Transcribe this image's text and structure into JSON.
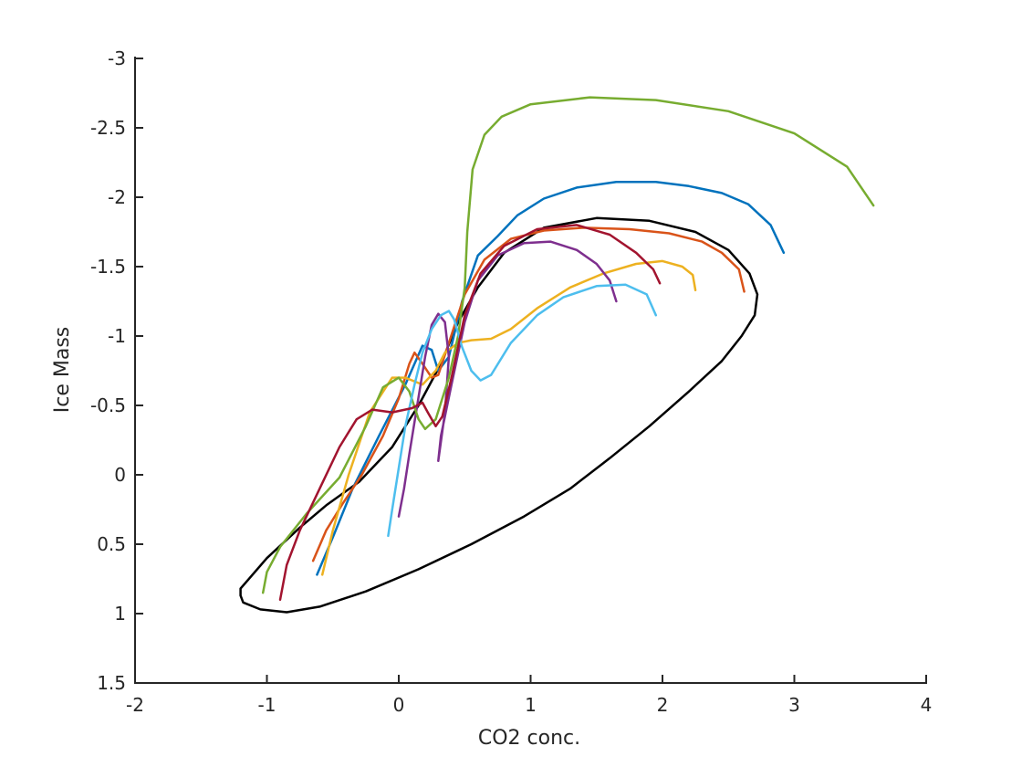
{
  "chart_data": {
    "type": "line",
    "title": "",
    "xlabel": "CO2 conc.",
    "ylabel": "Ice Mass",
    "xlim": [
      -2,
      4
    ],
    "ylim": [
      -3,
      1.5
    ],
    "y_reversed": true,
    "grid": false,
    "box": "axes-left-bottom",
    "xticks": [
      -2,
      -1,
      0,
      1,
      2,
      3,
      4
    ],
    "xtick_labels": [
      "-2",
      "-1",
      "0",
      "1",
      "2",
      "3",
      "4"
    ],
    "yticks": [
      -3,
      -2.5,
      -2,
      -1.5,
      -1,
      -0.5,
      0,
      0.5,
      1,
      1.5
    ],
    "ytick_labels": [
      "-3",
      "-2.5",
      "-2",
      "-1.5",
      "-1",
      "-0.5",
      "0",
      "0.5",
      "1",
      "1.5"
    ],
    "series": [
      {
        "color": "#000000",
        "closed": true,
        "points": [
          [
            -1.2,
            0.82
          ],
          [
            -1.0,
            0.6
          ],
          [
            -0.75,
            0.38
          ],
          [
            -0.55,
            0.22
          ],
          [
            -0.3,
            0.05
          ],
          [
            -0.05,
            -0.2
          ],
          [
            0.15,
            -0.5
          ],
          [
            0.32,
            -0.8
          ],
          [
            0.45,
            -1.1
          ],
          [
            0.6,
            -1.35
          ],
          [
            0.8,
            -1.6
          ],
          [
            1.1,
            -1.78
          ],
          [
            1.5,
            -1.85
          ],
          [
            1.9,
            -1.83
          ],
          [
            2.25,
            -1.75
          ],
          [
            2.5,
            -1.62
          ],
          [
            2.66,
            -1.45
          ],
          [
            2.72,
            -1.3
          ],
          [
            2.7,
            -1.15
          ],
          [
            2.6,
            -1.0
          ],
          [
            2.45,
            -0.82
          ],
          [
            2.2,
            -0.6
          ],
          [
            1.9,
            -0.35
          ],
          [
            1.6,
            -0.12
          ],
          [
            1.3,
            0.1
          ],
          [
            0.95,
            0.3
          ],
          [
            0.55,
            0.5
          ],
          [
            0.15,
            0.68
          ],
          [
            -0.25,
            0.84
          ],
          [
            -0.6,
            0.95
          ],
          [
            -0.85,
            0.99
          ],
          [
            -1.05,
            0.97
          ],
          [
            -1.18,
            0.92
          ],
          [
            -1.2,
            0.87
          ]
        ]
      },
      {
        "color": "#0072bd",
        "points": [
          [
            -0.62,
            0.72
          ],
          [
            -0.5,
            0.45
          ],
          [
            -0.35,
            0.1
          ],
          [
            -0.15,
            -0.28
          ],
          [
            0.05,
            -0.65
          ],
          [
            0.18,
            -0.93
          ],
          [
            0.25,
            -0.9
          ],
          [
            0.3,
            -0.75
          ],
          [
            0.38,
            -0.85
          ],
          [
            0.48,
            -1.25
          ],
          [
            0.6,
            -1.58
          ],
          [
            0.75,
            -1.72
          ],
          [
            0.9,
            -1.87
          ],
          [
            1.1,
            -1.99
          ],
          [
            1.35,
            -2.07
          ],
          [
            1.65,
            -2.11
          ],
          [
            1.95,
            -2.11
          ],
          [
            2.2,
            -2.08
          ],
          [
            2.45,
            -2.03
          ],
          [
            2.65,
            -1.95
          ],
          [
            2.82,
            -1.8
          ],
          [
            2.92,
            -1.6
          ]
        ]
      },
      {
        "color": "#d95319",
        "points": [
          [
            -0.65,
            0.62
          ],
          [
            -0.55,
            0.4
          ],
          [
            -0.42,
            0.2
          ],
          [
            -0.28,
            0.0
          ],
          [
            -0.12,
            -0.28
          ],
          [
            0.0,
            -0.55
          ],
          [
            0.08,
            -0.8
          ],
          [
            0.12,
            -0.88
          ],
          [
            0.18,
            -0.8
          ],
          [
            0.25,
            -0.7
          ],
          [
            0.3,
            -0.72
          ],
          [
            0.38,
            -0.95
          ],
          [
            0.5,
            -1.3
          ],
          [
            0.65,
            -1.55
          ],
          [
            0.85,
            -1.7
          ],
          [
            1.1,
            -1.76
          ],
          [
            1.4,
            -1.78
          ],
          [
            1.75,
            -1.77
          ],
          [
            2.05,
            -1.74
          ],
          [
            2.3,
            -1.68
          ],
          [
            2.45,
            -1.6
          ],
          [
            2.58,
            -1.48
          ],
          [
            2.62,
            -1.32
          ]
        ]
      },
      {
        "color": "#edb120",
        "points": [
          [
            -0.58,
            0.72
          ],
          [
            -0.5,
            0.4
          ],
          [
            -0.38,
            0.0
          ],
          [
            -0.22,
            -0.45
          ],
          [
            -0.05,
            -0.7
          ],
          [
            0.05,
            -0.7
          ],
          [
            0.18,
            -0.65
          ],
          [
            0.28,
            -0.75
          ],
          [
            0.35,
            -0.88
          ],
          [
            0.45,
            -0.95
          ],
          [
            0.55,
            -0.97
          ],
          [
            0.7,
            -0.98
          ],
          [
            0.85,
            -1.05
          ],
          [
            1.05,
            -1.2
          ],
          [
            1.3,
            -1.35
          ],
          [
            1.55,
            -1.45
          ],
          [
            1.8,
            -1.52
          ],
          [
            2.0,
            -1.54
          ],
          [
            2.15,
            -1.5
          ],
          [
            2.23,
            -1.44
          ],
          [
            2.25,
            -1.33
          ]
        ]
      },
      {
        "color": "#7e2f8e",
        "points": [
          [
            0.0,
            0.3
          ],
          [
            0.04,
            0.1
          ],
          [
            0.08,
            -0.15
          ],
          [
            0.14,
            -0.5
          ],
          [
            0.2,
            -0.85
          ],
          [
            0.25,
            -1.08
          ],
          [
            0.3,
            -1.16
          ],
          [
            0.35,
            -1.1
          ],
          [
            0.38,
            -0.85
          ],
          [
            0.35,
            -0.45
          ],
          [
            0.3,
            -0.1
          ],
          [
            0.32,
            -0.28
          ],
          [
            0.4,
            -0.65
          ],
          [
            0.5,
            -1.1
          ],
          [
            0.6,
            -1.4
          ],
          [
            0.75,
            -1.58
          ],
          [
            0.95,
            -1.67
          ],
          [
            1.15,
            -1.68
          ],
          [
            1.35,
            -1.62
          ],
          [
            1.5,
            -1.52
          ],
          [
            1.6,
            -1.4
          ],
          [
            1.65,
            -1.25
          ]
        ]
      },
      {
        "color": "#77ac30",
        "points": [
          [
            -1.03,
            0.85
          ],
          [
            -1.0,
            0.7
          ],
          [
            -0.9,
            0.52
          ],
          [
            -0.7,
            0.28
          ],
          [
            -0.45,
            0.02
          ],
          [
            -0.25,
            -0.35
          ],
          [
            -0.12,
            -0.63
          ],
          [
            0.0,
            -0.7
          ],
          [
            0.08,
            -0.6
          ],
          [
            0.15,
            -0.4
          ],
          [
            0.2,
            -0.33
          ],
          [
            0.28,
            -0.4
          ],
          [
            0.38,
            -0.7
          ],
          [
            0.45,
            -1.0
          ],
          [
            0.5,
            -1.35
          ],
          [
            0.52,
            -1.75
          ],
          [
            0.56,
            -2.2
          ],
          [
            0.65,
            -2.45
          ],
          [
            0.78,
            -2.58
          ],
          [
            1.0,
            -2.67
          ],
          [
            1.45,
            -2.72
          ],
          [
            1.95,
            -2.7
          ],
          [
            2.5,
            -2.62
          ],
          [
            3.0,
            -2.46
          ],
          [
            3.4,
            -2.22
          ],
          [
            3.6,
            -1.94
          ]
        ]
      },
      {
        "color": "#4dbeee",
        "points": [
          [
            -0.08,
            0.44
          ],
          [
            -0.05,
            0.25
          ],
          [
            0.0,
            -0.05
          ],
          [
            0.05,
            -0.35
          ],
          [
            0.12,
            -0.65
          ],
          [
            0.18,
            -0.88
          ],
          [
            0.25,
            -1.05
          ],
          [
            0.32,
            -1.15
          ],
          [
            0.38,
            -1.18
          ],
          [
            0.42,
            -1.12
          ],
          [
            0.48,
            -0.92
          ],
          [
            0.55,
            -0.75
          ],
          [
            0.62,
            -0.68
          ],
          [
            0.7,
            -0.72
          ],
          [
            0.85,
            -0.95
          ],
          [
            1.05,
            -1.15
          ],
          [
            1.25,
            -1.28
          ],
          [
            1.5,
            -1.36
          ],
          [
            1.72,
            -1.37
          ],
          [
            1.88,
            -1.3
          ],
          [
            1.95,
            -1.15
          ]
        ]
      },
      {
        "color": "#a2142f",
        "points": [
          [
            -0.9,
            0.9
          ],
          [
            -0.85,
            0.65
          ],
          [
            -0.75,
            0.4
          ],
          [
            -0.6,
            0.1
          ],
          [
            -0.45,
            -0.2
          ],
          [
            -0.32,
            -0.4
          ],
          [
            -0.2,
            -0.47
          ],
          [
            -0.05,
            -0.45
          ],
          [
            0.1,
            -0.48
          ],
          [
            0.18,
            -0.52
          ],
          [
            0.22,
            -0.45
          ],
          [
            0.28,
            -0.35
          ],
          [
            0.33,
            -0.42
          ],
          [
            0.4,
            -0.7
          ],
          [
            0.5,
            -1.15
          ],
          [
            0.62,
            -1.45
          ],
          [
            0.8,
            -1.65
          ],
          [
            1.05,
            -1.77
          ],
          [
            1.35,
            -1.8
          ],
          [
            1.6,
            -1.73
          ],
          [
            1.8,
            -1.6
          ],
          [
            1.93,
            -1.48
          ],
          [
            1.98,
            -1.38
          ]
        ]
      }
    ]
  }
}
